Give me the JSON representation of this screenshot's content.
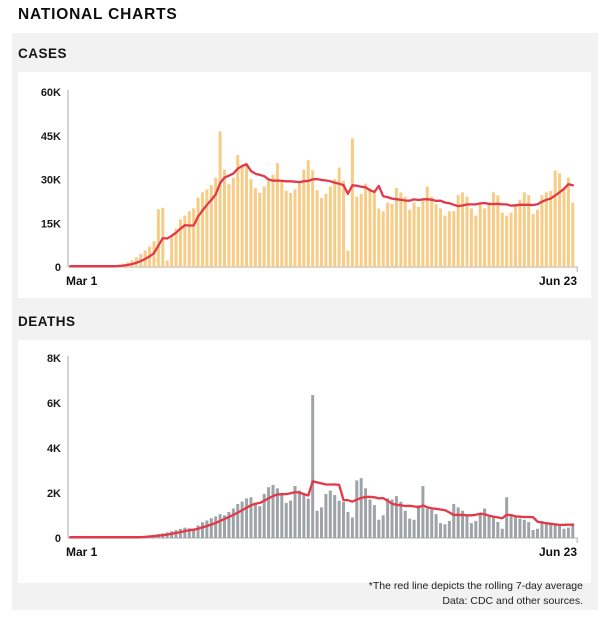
{
  "page": {
    "title": "NATIONAL CHARTS"
  },
  "footnotes": {
    "line1": "*The red line depicts the rolling 7-day average",
    "line2": "Data: CDC and other sources."
  },
  "colors": {
    "panel_bg": "#f2f2f2",
    "card_bg": "#ffffff",
    "axis": "#c8c8c8",
    "rolling_average_line": "#e2394a",
    "cases_bars": "#f7cc86",
    "deaths_bars": "#9ea3a8"
  },
  "chart_data": [
    {
      "type": "bar",
      "title": "CASES",
      "series_note": "daily reported cases, Mar 1 - Jun 23; red line is rolling 7-day average",
      "x_start_label": "Mar 1",
      "x_end_label": "Jun 23",
      "ylim": [
        0,
        60000
      ],
      "yticks": [
        0,
        15000,
        30000,
        45000,
        60000
      ],
      "ytick_labels": [
        "0",
        "15K",
        "30K",
        "45K",
        "60K"
      ],
      "grid": false,
      "bar_color": "#f7cc86",
      "line_color": "#e2394a",
      "values": [
        10,
        15,
        20,
        30,
        50,
        80,
        120,
        180,
        260,
        380,
        550,
        780,
        1100,
        1600,
        2300,
        3300,
        4500,
        5700,
        7000,
        8800,
        19800,
        20300,
        2200,
        11000,
        13200,
        16300,
        17600,
        19100,
        20100,
        23800,
        25600,
        26600,
        28100,
        30600,
        46500,
        33400,
        28400,
        30600,
        38400,
        34400,
        35100,
        30100,
        27000,
        25400,
        27600,
        30400,
        31600,
        35600,
        29100,
        26100,
        25400,
        26600,
        29400,
        33400,
        36600,
        33100,
        26400,
        23600,
        25100,
        27600,
        30100,
        34100,
        29600,
        5600,
        44100,
        24100,
        25100,
        28600,
        27100,
        25600,
        20100,
        19100,
        22100,
        21600,
        27100,
        25600,
        24100,
        19600,
        22100,
        20600,
        23100,
        27600,
        24100,
        21600,
        20100,
        17600,
        19100,
        19100,
        24600,
        25600,
        24100,
        20100,
        17600,
        21600,
        20100,
        22100,
        25600,
        24600,
        18600,
        17600,
        18600,
        21100,
        23100,
        25600,
        24600,
        18100,
        19600,
        24600,
        25600,
        26100,
        33100,
        32100,
        26600,
        30600,
        22100
      ]
    },
    {
      "type": "bar",
      "title": "DEATHS",
      "series_note": "daily reported deaths, Mar 1 - Jun 23; red line is rolling 7-day average",
      "x_start_label": "Mar 1",
      "x_end_label": "Jun 23",
      "ylim": [
        0,
        8000
      ],
      "yticks": [
        0,
        2000,
        4000,
        6000,
        8000
      ],
      "ytick_labels": [
        "0",
        "2K",
        "4K",
        "6K",
        "8K"
      ],
      "grid": false,
      "bar_color": "#9ea3a8",
      "line_color": "#e2394a",
      "values": [
        1,
        1,
        2,
        3,
        3,
        4,
        5,
        6,
        8,
        10,
        14,
        18,
        25,
        35,
        45,
        60,
        75,
        95,
        120,
        145,
        175,
        210,
        250,
        300,
        350,
        400,
        460,
        430,
        390,
        560,
        700,
        780,
        880,
        960,
        1060,
        1010,
        1160,
        1310,
        1510,
        1620,
        1760,
        1810,
        1510,
        1410,
        1960,
        2260,
        2360,
        2210,
        1910,
        1560,
        1660,
        2310,
        2110,
        1910,
        1750,
        6350,
        1210,
        1360,
        1960,
        2110,
        1910,
        1660,
        1610,
        1160,
        910,
        2560,
        2660,
        2210,
        1710,
        1460,
        810,
        1010,
        1760,
        1710,
        1860,
        1610,
        1210,
        860,
        810,
        1460,
        2310,
        1310,
        1260,
        1060,
        660,
        610,
        760,
        1510,
        1360,
        1210,
        960,
        660,
        760,
        1110,
        1310,
        960,
        910,
        710,
        410,
        1810,
        1010,
        910,
        860,
        810,
        710,
        360,
        410,
        760,
        710,
        660,
        610,
        560,
        410,
        460,
        660
      ]
    }
  ]
}
